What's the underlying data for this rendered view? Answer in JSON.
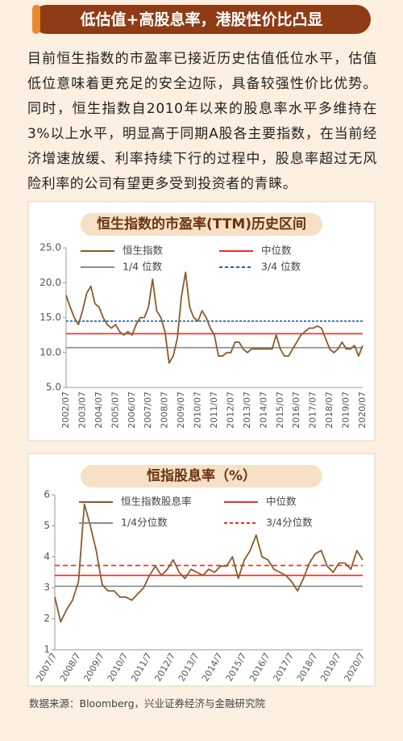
{
  "title": "低估值+高股息率，港股性价比凸显",
  "body": "目前恒生指数的市盈率已接近历史估值低位水平，估值低位意味着更充足的安全边际，具备较强性价比优势。同时，恒生指数自2010年以来的股息率水平多维持在3%以上水平，明显高于同期A股各主要指数，在当前经济增速放缓、利率持续下行的过程中，股息率超过无风险利率的公司有望更多受到投资者的青睐。",
  "source": "数据来源：Bloomberg，兴业证券经济与金融研究院",
  "chart_data": [
    {
      "type": "line",
      "title": "恒生指数的市盈率(TTM)历史区间",
      "categories": [
        "2002/07",
        null,
        null,
        null,
        "2003/07",
        null,
        null,
        null,
        "2004/07",
        null,
        null,
        null,
        "2005/07",
        null,
        null,
        null,
        "2006/07",
        null,
        null,
        null,
        "2007/07",
        null,
        null,
        null,
        "2008/07",
        null,
        null,
        null,
        "2009/07",
        null,
        null,
        null,
        "2010/07",
        null,
        null,
        null,
        "2011/07",
        null,
        null,
        null,
        "2012/07",
        null,
        null,
        null,
        "2013/07",
        null,
        null,
        null,
        "2014/07",
        null,
        null,
        null,
        "2015/07",
        null,
        null,
        null,
        "2016/07",
        null,
        null,
        null,
        "2017/07",
        null,
        null,
        null,
        "2018/07",
        null,
        null,
        null,
        "2019/07",
        null,
        null,
        null,
        "2020/07"
      ],
      "series": [
        {
          "name": "恒生指数",
          "color": "#8b5a2b",
          "values": [
            18.2,
            16.5,
            15.0,
            14.0,
            16.0,
            18.5,
            19.5,
            17.0,
            16.5,
            15.0,
            14.0,
            13.5,
            14.0,
            13.0,
            12.5,
            13.0,
            12.5,
            14.0,
            15.0,
            15.0,
            16.5,
            20.5,
            16.0,
            15.0,
            13.0,
            8.5,
            9.5,
            12.0,
            18.0,
            21.5,
            16.5,
            15.0,
            14.5,
            16.0,
            15.0,
            13.5,
            12.5,
            9.5,
            9.5,
            10.0,
            10.0,
            11.5,
            11.5,
            10.5,
            10.0,
            10.5,
            10.5,
            10.5,
            10.5,
            10.5,
            10.5,
            12.5,
            10.5,
            9.5,
            9.5,
            10.5,
            11.5,
            12.5,
            13.0,
            13.5,
            13.5,
            13.8,
            13.5,
            12.0,
            10.5,
            10.0,
            10.5,
            11.5,
            10.5,
            10.5,
            11.0,
            9.5,
            11.0
          ]
        }
      ],
      "hlines": [
        {
          "name": "中位数",
          "color": "#e8302a",
          "value": 12.7,
          "dashed": false
        },
        {
          "name": "1/4 位数",
          "color": "#8c8c8c",
          "value": 10.7,
          "dashed": false
        },
        {
          "name": "3/4 位数",
          "color": "#1f5fa8",
          "value": 14.5,
          "dashed": true
        }
      ],
      "ylim": [
        5,
        25
      ],
      "yticks": [
        {
          "value": 5,
          "label": "5.0"
        },
        {
          "value": 10,
          "label": "10.0"
        },
        {
          "value": 15,
          "label": "15.0"
        },
        {
          "value": 20,
          "label": "20.0"
        },
        {
          "value": 25,
          "label": "25.0"
        }
      ],
      "grid": false
    },
    {
      "type": "line",
      "title": "恒指股息率（%）",
      "categories": [
        "2007/7",
        null,
        null,
        null,
        "2008/7",
        null,
        null,
        null,
        "2009/7",
        null,
        null,
        null,
        "2010/7",
        null,
        null,
        null,
        "2011/7",
        null,
        null,
        null,
        "2012/7",
        null,
        null,
        null,
        "2013/7",
        null,
        null,
        null,
        "2014/7",
        null,
        null,
        null,
        "2015/7",
        null,
        null,
        null,
        "2016/7",
        null,
        null,
        null,
        "2017/7",
        null,
        null,
        null,
        "2018/7",
        null,
        null,
        null,
        "2019/7",
        null,
        null,
        null,
        "2020/7"
      ],
      "series": [
        {
          "name": "恒生指数股息率",
          "color": "#8b5a2b",
          "values": [
            2.7,
            1.9,
            2.3,
            2.6,
            3.2,
            5.7,
            5.0,
            4.2,
            3.1,
            2.9,
            2.9,
            2.7,
            2.7,
            2.6,
            2.8,
            3.0,
            3.4,
            3.7,
            3.4,
            3.6,
            3.9,
            3.5,
            3.3,
            3.6,
            3.5,
            3.4,
            3.6,
            3.5,
            3.7,
            3.7,
            4.0,
            3.3,
            3.9,
            4.2,
            4.7,
            4.0,
            3.9,
            3.6,
            3.5,
            3.4,
            3.2,
            2.9,
            3.3,
            3.8,
            4.1,
            4.2,
            3.7,
            3.5,
            3.8,
            3.8,
            3.6,
            4.2,
            3.9
          ]
        }
      ],
      "hlines": [
        {
          "name": "中位数",
          "color": "#e8302a",
          "value": 3.4,
          "dashed": false
        },
        {
          "name": "1/4分位数",
          "color": "#8c8c8c",
          "value": 3.05,
          "dashed": false
        },
        {
          "name": "3/4分位数",
          "color": "#e8302a",
          "value": 3.72,
          "dashed": true
        }
      ],
      "ylim": [
        1,
        6
      ],
      "yticks": [
        1,
        2,
        3,
        4,
        5,
        6
      ],
      "grid": false
    }
  ]
}
